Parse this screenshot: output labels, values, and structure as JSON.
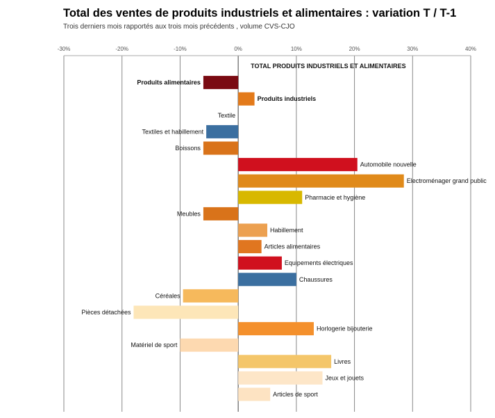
{
  "chart_data": {
    "type": "bar",
    "orientation": "horizontal",
    "title": "Total des ventes de produits industriels et alimentaires : variation T / T-1",
    "subtitle": "Trois derniers mois rapportés aux trois mois précédents , volume CVS-CJO",
    "xlim": [
      -30,
      40
    ],
    "x_ticks": [
      "-30%",
      "-20%",
      "-10%",
      "0%",
      "10%",
      "20%",
      "30%",
      "40%"
    ],
    "grid": true,
    "bars": [
      {
        "label": "TOTAL PRODUITS INDUSTRIELS ET ALIMENTAIRES",
        "value": 0,
        "color": "#7a0a12",
        "label_pos": "right",
        "bold": true
      },
      {
        "label": "Produits alimentaires",
        "value": -6.0,
        "color": "#7a0a12",
        "label_pos": "left",
        "bold": true
      },
      {
        "label": "Produits industriels",
        "value": 2.8,
        "color": "#e37a1a",
        "label_pos": "right",
        "bold": true
      },
      {
        "label": "Textile",
        "value": 0,
        "color": "#e37a1a",
        "label_pos": "left",
        "bold": false
      },
      {
        "label": "Textiles et habillement",
        "value": -5.5,
        "color": "#3b6fa0",
        "label_pos": "left",
        "bold": false
      },
      {
        "label": "Boissons",
        "value": -6.0,
        "color": "#d9731a",
        "label_pos": "left",
        "bold": false
      },
      {
        "label": "Automobile nouvelle",
        "value": 20.5,
        "color": "#d0101e",
        "label_pos": "right",
        "bold": false
      },
      {
        "label": "Electroménager grand public",
        "value": 28.5,
        "color": "#e08a1a",
        "label_pos": "right",
        "bold": false
      },
      {
        "label": "Pharmacie et hygiène",
        "value": 11.0,
        "color": "#d8b800",
        "label_pos": "right",
        "bold": false
      },
      {
        "label": "Meubles",
        "value": -6.0,
        "color": "#d9731a",
        "label_pos": "left",
        "bold": false
      },
      {
        "label": "Habillement",
        "value": 5.0,
        "color": "#eca050",
        "label_pos": "right",
        "bold": false
      },
      {
        "label": "Articles alimentaires",
        "value": 4.0,
        "color": "#e07620",
        "label_pos": "right",
        "bold": false
      },
      {
        "label": "Equipements électriques",
        "value": 7.5,
        "color": "#d0101e",
        "label_pos": "right",
        "bold": false
      },
      {
        "label": "Chaussures",
        "value": 10.0,
        "color": "#3b6fa0",
        "label_pos": "right",
        "bold": false
      },
      {
        "label": "Céréales",
        "value": -9.5,
        "color": "#f6b95c",
        "label_pos": "left",
        "bold": false
      },
      {
        "label": "Pièces détachées",
        "value": -18.0,
        "color": "#fde6b8",
        "label_pos": "left",
        "bold": false
      },
      {
        "label": "Horlogerie bijouterie",
        "value": 13.0,
        "color": "#f4902c",
        "label_pos": "right",
        "bold": false
      },
      {
        "label": "Matériel de sport",
        "value": -10.0,
        "color": "#fdd9b0",
        "label_pos": "left",
        "bold": false
      },
      {
        "label": "Livres",
        "value": 16.0,
        "color": "#f4c66a",
        "label_pos": "right",
        "bold": false
      },
      {
        "label": "Jeux et jouets",
        "value": 14.5,
        "color": "#fde6c8",
        "label_pos": "right",
        "bold": false
      },
      {
        "label": "Articles de sport",
        "value": 5.5,
        "color": "#fde3c2",
        "label_pos": "right",
        "bold": false
      }
    ]
  }
}
